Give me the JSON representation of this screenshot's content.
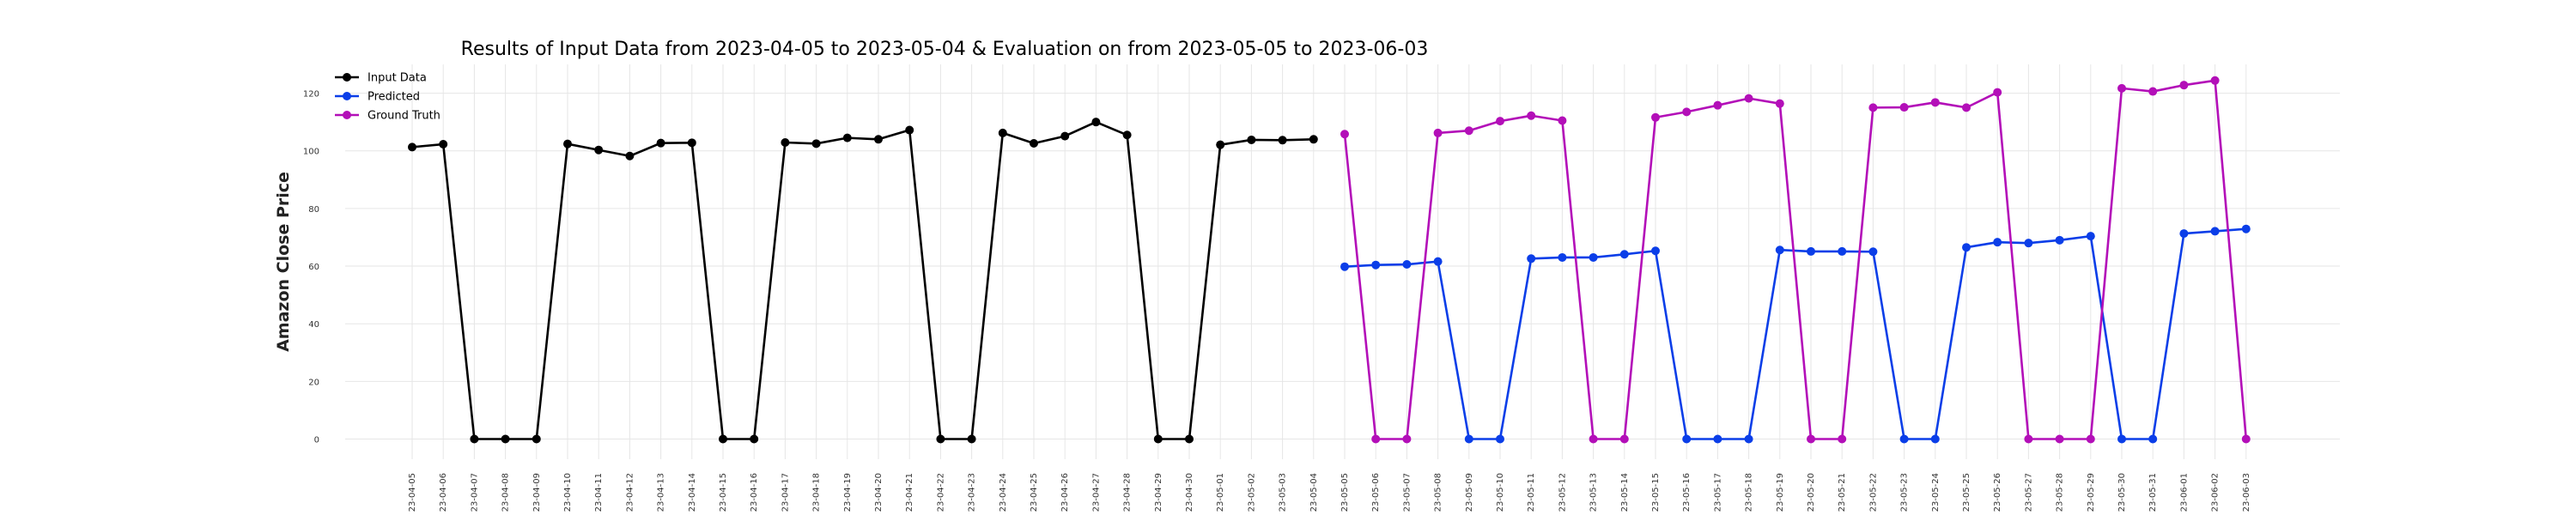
{
  "chart_data": {
    "type": "line",
    "title": "Results of Input Data from 2023-04-05 to 2023-05-04 & Evaluation on from 2023-05-05 to 2023-06-03",
    "xlabel": "",
    "ylabel": "Amazon Close Price",
    "ylim": [
      -7,
      130
    ],
    "yticks": [
      0,
      20,
      40,
      60,
      80,
      100,
      120
    ],
    "grid": true,
    "legend_position": "top-left",
    "categories": [
      "2023-04-05",
      "2023-04-06",
      "2023-04-07",
      "2023-04-08",
      "2023-04-09",
      "2023-04-10",
      "2023-04-11",
      "2023-04-12",
      "2023-04-13",
      "2023-04-14",
      "2023-04-15",
      "2023-04-16",
      "2023-04-17",
      "2023-04-18",
      "2023-04-19",
      "2023-04-20",
      "2023-04-21",
      "2023-04-22",
      "2023-04-23",
      "2023-04-24",
      "2023-04-25",
      "2023-04-26",
      "2023-04-27",
      "2023-04-28",
      "2023-04-29",
      "2023-04-30",
      "2023-05-01",
      "2023-05-02",
      "2023-05-03",
      "2023-05-04",
      "2023-05-05",
      "2023-05-06",
      "2023-05-07",
      "2023-05-08",
      "2023-05-09",
      "2023-05-10",
      "2023-05-11",
      "2023-05-12",
      "2023-05-13",
      "2023-05-14",
      "2023-05-15",
      "2023-05-16",
      "2023-05-17",
      "2023-05-18",
      "2023-05-19",
      "2023-05-20",
      "2023-05-21",
      "2023-05-22",
      "2023-05-23",
      "2023-05-24",
      "2023-05-25",
      "2023-05-26",
      "2023-05-27",
      "2023-05-28",
      "2023-05-29",
      "2023-05-30",
      "2023-05-31",
      "2023-06-01",
      "2023-06-02",
      "2023-06-03"
    ],
    "series": [
      {
        "name": "Input Data",
        "color": "#000000",
        "x": [
          "2023-04-05",
          "2023-04-06",
          "2023-04-07",
          "2023-04-08",
          "2023-04-09",
          "2023-04-10",
          "2023-04-11",
          "2023-04-12",
          "2023-04-13",
          "2023-04-14",
          "2023-04-15",
          "2023-04-16",
          "2023-04-17",
          "2023-04-18",
          "2023-04-19",
          "2023-04-20",
          "2023-04-21",
          "2023-04-22",
          "2023-04-23",
          "2023-04-24",
          "2023-04-25",
          "2023-04-26",
          "2023-04-27",
          "2023-04-28",
          "2023-04-29",
          "2023-04-30",
          "2023-05-01",
          "2023-05-02",
          "2023-05-03",
          "2023-05-04"
        ],
        "values": [
          101.3,
          102.3,
          0,
          0,
          0,
          102.4,
          100.3,
          98.2,
          102.7,
          102.8,
          0,
          0,
          102.9,
          102.5,
          104.5,
          104.0,
          107.2,
          0,
          0,
          106.2,
          102.6,
          105.1,
          110.0,
          105.5,
          0,
          0,
          102.1,
          103.8,
          103.7,
          104.0
        ]
      },
      {
        "name": "Predicted",
        "color": "#0b3ee8",
        "x": [
          "2023-05-05",
          "2023-05-06",
          "2023-05-07",
          "2023-05-08",
          "2023-05-09",
          "2023-05-10",
          "2023-05-11",
          "2023-05-12",
          "2023-05-13",
          "2023-05-14",
          "2023-05-15",
          "2023-05-16",
          "2023-05-17",
          "2023-05-18",
          "2023-05-19",
          "2023-05-20",
          "2023-05-21",
          "2023-05-22",
          "2023-05-23",
          "2023-05-24",
          "2023-05-25",
          "2023-05-26",
          "2023-05-27",
          "2023-05-28",
          "2023-05-29",
          "2023-05-30",
          "2023-05-31",
          "2023-06-01",
          "2023-06-02",
          "2023-06-03"
        ],
        "values": [
          59.8,
          60.4,
          60.6,
          61.6,
          0,
          0,
          62.6,
          63.0,
          63.0,
          64.1,
          65.3,
          0,
          0,
          0,
          65.6,
          65.1,
          65.1,
          65.0,
          0,
          0,
          66.5,
          68.3,
          68.0,
          69.0,
          70.4,
          0,
          0,
          71.3,
          72.1,
          72.9
        ]
      },
      {
        "name": "Ground Truth",
        "color": "#b30fb8",
        "x": [
          "2023-05-05",
          "2023-05-06",
          "2023-05-07",
          "2023-05-08",
          "2023-05-09",
          "2023-05-10",
          "2023-05-11",
          "2023-05-12",
          "2023-05-13",
          "2023-05-14",
          "2023-05-15",
          "2023-05-16",
          "2023-05-17",
          "2023-05-18",
          "2023-05-19",
          "2023-05-20",
          "2023-05-21",
          "2023-05-22",
          "2023-05-23",
          "2023-05-24",
          "2023-05-25",
          "2023-05-26",
          "2023-05-27",
          "2023-05-28",
          "2023-05-29",
          "2023-05-30",
          "2023-05-31",
          "2023-06-01",
          "2023-06-02",
          "2023-06-03"
        ],
        "values": [
          105.8,
          0,
          0,
          106.2,
          107.0,
          110.3,
          112.2,
          110.5,
          0,
          0,
          111.6,
          113.5,
          115.8,
          118.2,
          116.4,
          0,
          0,
          115.0,
          115.1,
          116.8,
          115.0,
          120.3,
          0,
          0,
          0,
          121.7,
          120.6,
          122.8,
          124.4,
          0
        ]
      }
    ]
  }
}
